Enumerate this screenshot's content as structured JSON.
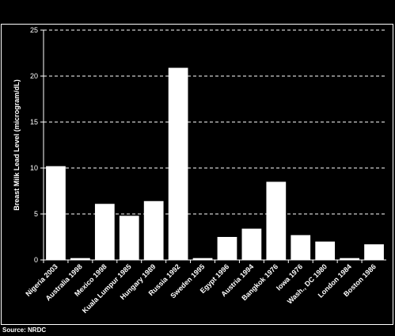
{
  "chart_data": {
    "type": "bar",
    "title": "",
    "xlabel": "",
    "ylabel": "Breast Milk Lead Level (microgram/dL)",
    "ylim": [
      0,
      25
    ],
    "yticks": [
      0,
      5,
      10,
      15,
      20,
      25
    ],
    "grid": true,
    "categories": [
      "Nigeria 2003",
      "Australia 1998",
      "Mexico 1998",
      "Kuala Lumpur 1985",
      "Hungary 1989",
      "Russia 1992",
      "Sweden 1995",
      "Egypt 1996",
      "Austria 1994",
      "Bangkok 1976",
      "Iowa 1976",
      "Wash., DC 1980",
      "London 1984",
      "Boston 1986"
    ],
    "values": [
      10.2,
      0.2,
      6.1,
      4.8,
      6.4,
      20.9,
      0.2,
      2.5,
      3.4,
      8.5,
      2.7,
      2.0,
      0.2,
      1.7
    ],
    "colors": {
      "background": "#000000",
      "bars": "#ffffff",
      "axes": "#ffffff",
      "grid": "#ffffff"
    }
  },
  "source": "Source: NRDC"
}
